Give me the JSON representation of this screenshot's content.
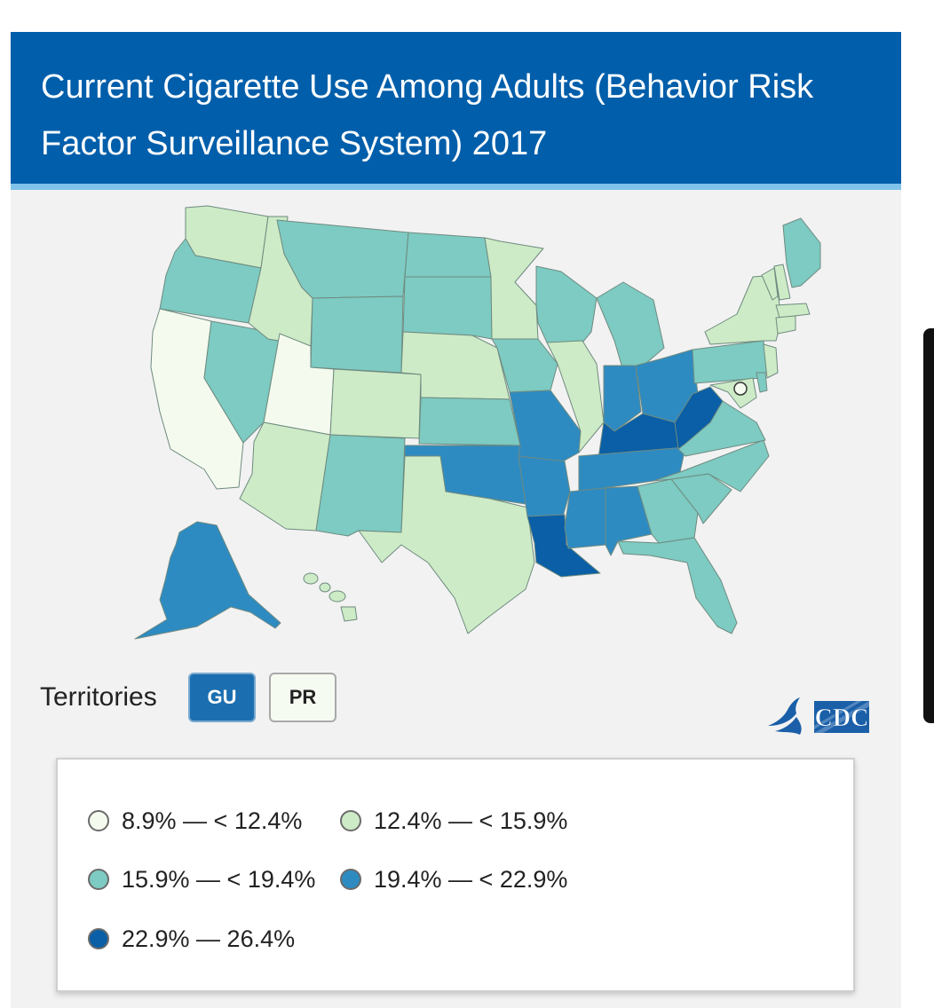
{
  "title": "Current Cigarette Use Among Adults (Behavior Risk Factor Surveillance System) 2017",
  "territories": {
    "label": "Territories",
    "buttons": [
      {
        "label": "GU",
        "fill": "#1b6fb0"
      },
      {
        "label": "PR",
        "fill": "#f6fbf2"
      }
    ]
  },
  "logo_text": "CDC",
  "legend": [
    {
      "label": "8.9% — < 12.4%",
      "color": "#f4fbee"
    },
    {
      "label": "12.4% — < 15.9%",
      "color": "#cdebc6"
    },
    {
      "label": "15.9% — < 19.4%",
      "color": "#7dcbc2"
    },
    {
      "label": "19.4% — < 22.9%",
      "color": "#2e8bc1"
    },
    {
      "label": "22.9% — 26.4%",
      "color": "#0a5fa6"
    }
  ],
  "map_data": {
    "category_colors": [
      "#f4fbee",
      "#cdebc6",
      "#7dcbc2",
      "#2e8bc1",
      "#0a5fa6"
    ],
    "states": {
      "WA": 1,
      "OR": 2,
      "CA": 0,
      "NV": 2,
      "ID": 1,
      "MT": 2,
      "WY": 2,
      "UT": 0,
      "AZ": 1,
      "CO": 1,
      "NM": 2,
      "ND": 2,
      "SD": 2,
      "NE": 1,
      "KS": 2,
      "OK": 3,
      "TX": 1,
      "MN": 1,
      "IA": 2,
      "MO": 3,
      "AR": 3,
      "LA": 4,
      "WI": 2,
      "IL": 1,
      "MI": 2,
      "IN": 3,
      "OH": 3,
      "KY": 4,
      "TN": 3,
      "MS": 3,
      "AL": 3,
      "GA": 2,
      "FL": 2,
      "SC": 2,
      "NC": 2,
      "VA": 2,
      "WV": 4,
      "PA": 2,
      "NY": 1,
      "VT": 1,
      "NH": 1,
      "ME": 2,
      "MA": 1,
      "CT": 1,
      "NJ": 1,
      "DE": 2,
      "MD": 1,
      "DC": 0,
      "AK": 3,
      "HI": 1
    }
  }
}
